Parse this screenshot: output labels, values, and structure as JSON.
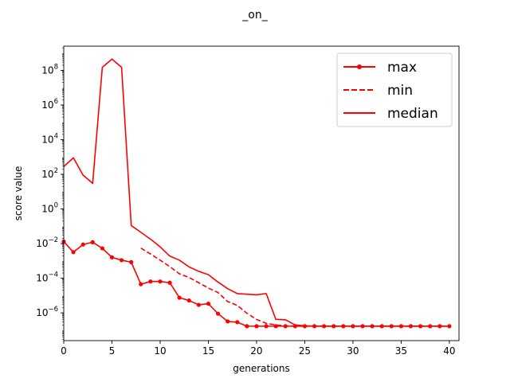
{
  "chart_data": {
    "type": "line",
    "title": "_on_",
    "xlabel": "generations",
    "ylabel": "score value",
    "xlim": [
      0,
      41
    ],
    "ylim": [
      2.5e-08,
      2500000000.0
    ],
    "yscale": "log",
    "grid": false,
    "legend_position": "top-right",
    "x_ticks": [
      0,
      5,
      10,
      15,
      20,
      25,
      30,
      35,
      40
    ],
    "x_tick_labels": [
      "0",
      "5",
      "10",
      "15",
      "20",
      "25",
      "30",
      "35",
      "40"
    ],
    "y_ticks": [
      1e-06,
      0.0001,
      0.01,
      1,
      100,
      10000,
      1000000,
      100000000
    ],
    "y_tick_labels": [
      {
        "base": "10",
        "exp": "−6"
      },
      {
        "base": "10",
        "exp": "−4"
      },
      {
        "base": "10",
        "exp": "−2"
      },
      {
        "base": "10",
        "exp": "0"
      },
      {
        "base": "10",
        "exp": "2"
      },
      {
        "base": "10",
        "exp": "4"
      },
      {
        "base": "10",
        "exp": "6"
      },
      {
        "base": "10",
        "exp": "8"
      }
    ],
    "color": "#ff0000",
    "series": [
      {
        "name": "max",
        "style": "solid-marker",
        "x": [
          0,
          1,
          2,
          3,
          4,
          5,
          6,
          7,
          8,
          9,
          10,
          11,
          12,
          13,
          14,
          15,
          16,
          17,
          18,
          19,
          20,
          21,
          22,
          23,
          24,
          25,
          26,
          27,
          28,
          29,
          30,
          31,
          32,
          33,
          34,
          35,
          36,
          37,
          38,
          39,
          40
        ],
        "values": [
          0.013,
          0.0032,
          0.0088,
          0.012,
          0.0053,
          0.0016,
          0.0011,
          0.00085,
          4.5e-05,
          6.5e-05,
          6.5e-05,
          5.5e-05,
          7.5e-06,
          5.2e-06,
          2.9e-06,
          3.4e-06,
          9e-07,
          3.2e-07,
          2.9e-07,
          1.7e-07,
          1.7e-07,
          1.7e-07,
          1.7e-07,
          1.7e-07,
          1.7e-07,
          1.7e-07,
          1.7e-07,
          1.7e-07,
          1.7e-07,
          1.7e-07,
          1.7e-07,
          1.7e-07,
          1.7e-07,
          1.7e-07,
          1.7e-07,
          1.7e-07,
          1.7e-07,
          1.7e-07,
          1.7e-07,
          1.7e-07,
          1.7e-07
        ]
      },
      {
        "name": "min",
        "style": "dashed",
        "x": [
          8,
          9,
          10,
          11,
          12,
          13,
          14,
          15,
          16,
          17,
          18,
          19,
          20,
          21,
          22,
          23,
          24,
          25,
          26,
          27,
          28,
          29,
          30,
          31,
          32,
          33,
          34,
          35,
          36,
          37,
          38,
          39,
          40
        ],
        "values": [
          0.0055,
          0.0025,
          0.0011,
          0.00047,
          0.00018,
          0.00011,
          5.5e-05,
          2.7e-05,
          1.5e-05,
          4.5e-06,
          2.7e-06,
          9.5e-07,
          4.2e-07,
          2.5e-07,
          2e-07,
          1.8e-07,
          1.7e-07,
          1.7e-07,
          1.7e-07,
          1.7e-07,
          1.7e-07,
          1.7e-07,
          1.7e-07,
          1.7e-07,
          1.7e-07,
          1.7e-07,
          1.7e-07,
          1.7e-07,
          1.7e-07,
          1.7e-07,
          1.7e-07,
          1.7e-07,
          1.7e-07
        ]
      },
      {
        "name": "median",
        "style": "solid",
        "x": [
          0,
          1,
          2,
          3,
          4,
          5,
          6,
          7,
          8,
          9,
          10,
          11,
          12,
          13,
          14,
          15,
          16,
          17,
          18,
          19,
          20,
          21,
          22,
          23,
          24,
          25,
          26,
          27,
          28,
          29,
          30,
          31,
          32,
          33,
          34,
          35,
          36,
          37,
          38,
          39,
          40
        ],
        "values": [
          280,
          900,
          90,
          30,
          150000000,
          450000000,
          150000000,
          0.11,
          0.045,
          0.018,
          0.0065,
          0.0019,
          0.0011,
          0.00045,
          0.00025,
          0.00016,
          6e-05,
          2.5e-05,
          1.3e-05,
          1.2e-05,
          1.1e-05,
          1.3e-05,
          4.2e-07,
          4e-07,
          2e-07,
          1.8e-07,
          1.7e-07,
          1.7e-07,
          1.7e-07,
          1.7e-07,
          1.7e-07,
          1.7e-07,
          1.7e-07,
          1.7e-07,
          1.7e-07,
          1.7e-07,
          1.7e-07,
          1.7e-07,
          1.7e-07,
          1.7e-07,
          1.7e-07
        ]
      }
    ]
  }
}
